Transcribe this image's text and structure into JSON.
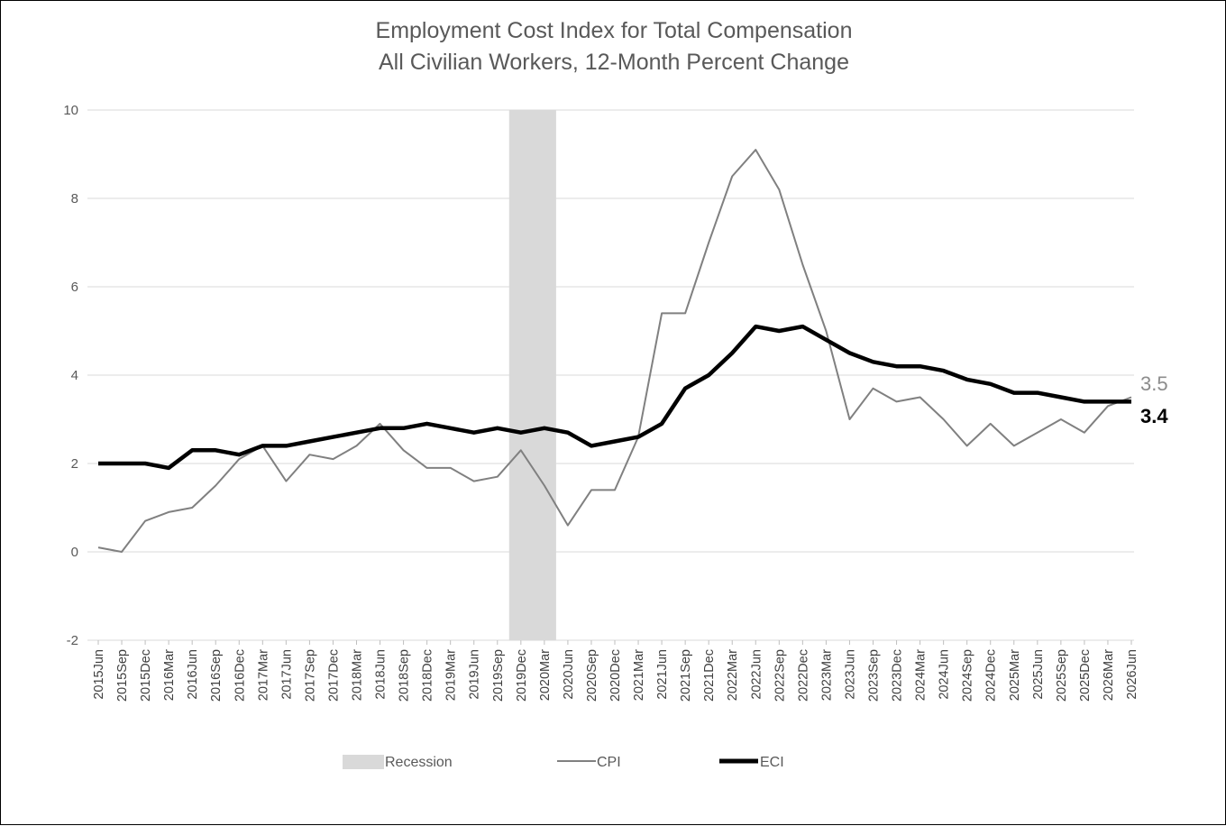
{
  "chart_data": {
    "type": "line",
    "title": "Employment Cost Index for Total Compensation",
    "subtitle": "All Civilian Workers, 12-Month Percent Change",
    "xlabel": "",
    "ylabel": "",
    "ylim": [
      -2,
      10
    ],
    "yticks": [
      "-2",
      "0",
      "2",
      "4",
      "6",
      "8",
      "10"
    ],
    "grid": true,
    "legend_position": "bottom",
    "x": [
      "2015Jun",
      "2015Sep",
      "2015Dec",
      "2016Mar",
      "2016Jun",
      "2016Sep",
      "2016Dec",
      "2017Mar",
      "2017Jun",
      "2017Sep",
      "2017Dec",
      "2018Mar",
      "2018Jun",
      "2018Sep",
      "2018Dec",
      "2019Mar",
      "2019Jun",
      "2019Sep",
      "2019Dec",
      "2020Mar",
      "2020Jun",
      "2020Sep",
      "2020Dec",
      "2021Mar",
      "2021Jun",
      "2021Sep",
      "2021Dec",
      "2022Mar",
      "2022Jun",
      "2022Sep",
      "2022Dec",
      "2023Mar",
      "2023Jun",
      "2023Sep",
      "2023Dec",
      "2024Mar",
      "2024Jun",
      "2024Sep",
      "2024Dec",
      "2025Mar",
      "2025Jun",
      "2025Sep",
      "2025Dec",
      "2026Mar",
      "2026Jun"
    ],
    "recession": {
      "name": "Recession",
      "start": "2019Dec",
      "end": "2020Mar",
      "color": "#d9d9d9"
    },
    "series": [
      {
        "name": "CPI",
        "color": "#808080",
        "end_label": "3.5",
        "values": [
          0.1,
          0.0,
          0.7,
          0.9,
          1.0,
          1.5,
          2.1,
          2.4,
          1.6,
          2.2,
          2.1,
          2.4,
          2.9,
          2.3,
          1.9,
          1.9,
          1.6,
          1.7,
          2.3,
          1.5,
          0.6,
          1.4,
          1.4,
          2.6,
          5.4,
          5.4,
          7.0,
          8.5,
          9.1,
          8.2,
          6.5,
          5.0,
          3.0,
          3.7,
          3.4,
          3.5,
          3.0,
          2.4,
          2.9,
          2.4,
          2.7,
          3.0,
          2.7,
          3.3,
          3.5
        ]
      },
      {
        "name": "ECI",
        "color": "#000000",
        "end_label": "3.4",
        "values": [
          2.0,
          2.0,
          2.0,
          1.9,
          2.3,
          2.3,
          2.2,
          2.4,
          2.4,
          2.5,
          2.6,
          2.7,
          2.8,
          2.8,
          2.9,
          2.8,
          2.7,
          2.8,
          2.7,
          2.8,
          2.7,
          2.4,
          2.5,
          2.6,
          2.9,
          3.7,
          4.0,
          4.5,
          5.1,
          5.0,
          5.1,
          4.8,
          4.5,
          4.3,
          4.2,
          4.2,
          4.1,
          3.9,
          3.8,
          3.6,
          3.6,
          3.5,
          3.4,
          3.4,
          3.4
        ]
      }
    ]
  }
}
